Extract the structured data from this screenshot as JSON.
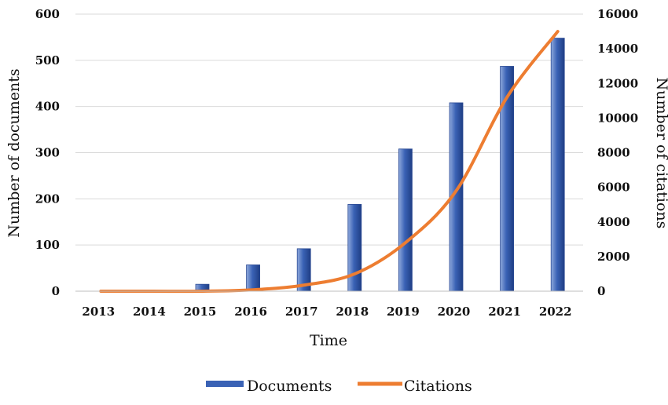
{
  "chart_data": {
    "type": "bar",
    "categories": [
      "2013",
      "2014",
      "2015",
      "2016",
      "2017",
      "2018",
      "2019",
      "2020",
      "2021",
      "2022"
    ],
    "series": [
      {
        "name": "Documents",
        "type": "bar",
        "axis": "left",
        "color": "#3A62B5",
        "values": [
          0,
          1,
          15,
          57,
          92,
          188,
          308,
          408,
          487,
          548
        ]
      },
      {
        "name": "Citations",
        "type": "line",
        "axis": "right",
        "color": "#ED7D31",
        "values": [
          0,
          0,
          0,
          80,
          350,
          1000,
          2800,
          5800,
          11200,
          15000
        ]
      }
    ],
    "xlabel": "Time",
    "ylabel": "Number of documents",
    "y2label": "Number of citations",
    "ylim": [
      0,
      600
    ],
    "y2lim": [
      0,
      16000
    ],
    "yticks": [
      "0",
      "100",
      "200",
      "300",
      "400",
      "500",
      "600"
    ],
    "y2ticks": [
      "0",
      "2000",
      "4000",
      "6000",
      "8000",
      "10000",
      "12000",
      "14000",
      "16000"
    ],
    "grid": true,
    "legend": "bottom"
  }
}
